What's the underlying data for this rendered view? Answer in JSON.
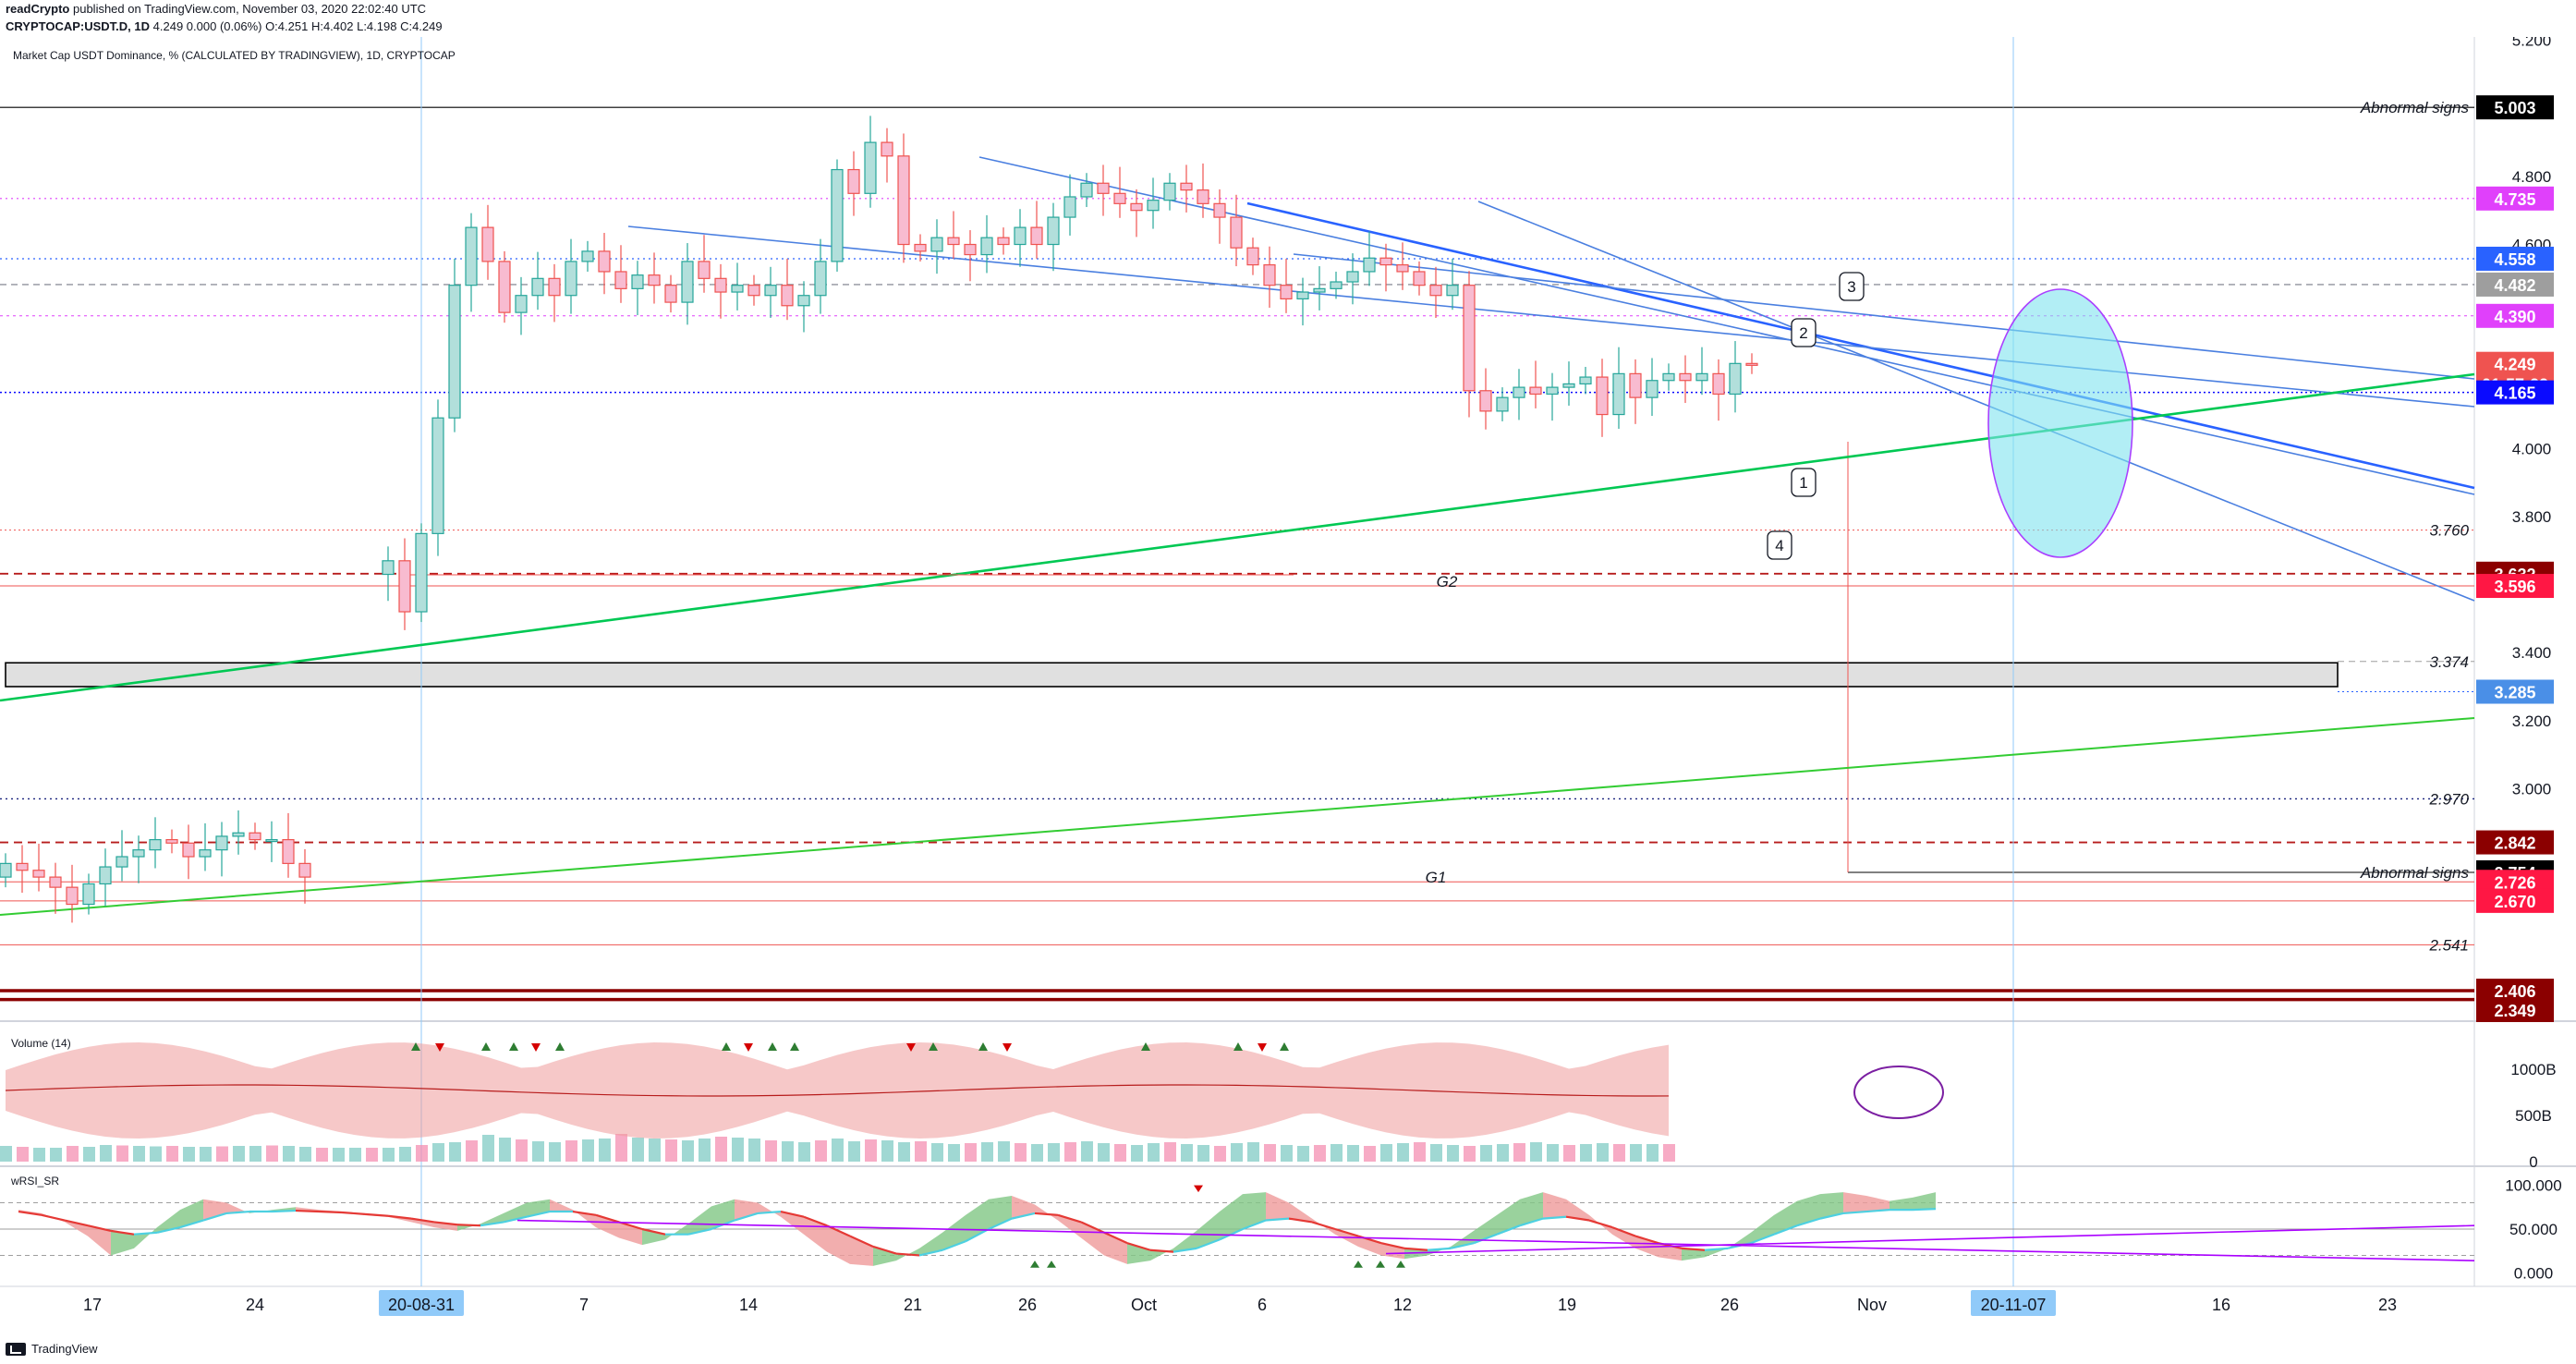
{
  "header": {
    "author": "readCrypto",
    "published": "published on TradingView.com, November 03, 2020 22:02:40 UTC",
    "symbol": "CRYPTOCAP:USDT.D, 1D",
    "ohlc": "4.249 0.000 (0.06%) O:4.251 H:4.402 L:4.198 C:4.249"
  },
  "legend": {
    "title": "Market Cap USDT Dominance, % (CALCULATED BY TRADINGVIEW), 1D, CRYPTOCAP"
  },
  "footer": {
    "brand": "TradingView"
  },
  "colors": {
    "up": "#26a69a",
    "down": "#ef5350",
    "trend_blue": "#2962ff",
    "support_green": "#00c853",
    "magenta": "#e040fb",
    "darkred": "#8b0000"
  },
  "chart_data": [
    {
      "type": "candlestick",
      "title": "Market Cap USDT Dominance, % (CALCULATED BY TRADINGVIEW), 1D, CRYPTOCAP",
      "x_ticks": [
        "17",
        "24",
        "20-08-31",
        "7",
        "14",
        "21",
        "26",
        "Oct",
        "6",
        "12",
        "19",
        "26",
        "Nov",
        "20-11-07",
        "16",
        "23"
      ],
      "y_ticks": [
        "5.200",
        "4.800",
        "4.600",
        "4.000",
        "3.800",
        "3.400",
        "3.200",
        "3.000"
      ],
      "ylim": [
        2.33,
        5.21
      ],
      "closes": [
        2.78,
        2.76,
        2.74,
        2.71,
        2.66,
        2.72,
        2.77,
        2.8,
        2.82,
        2.85,
        2.84,
        2.8,
        2.82,
        2.86,
        2.87,
        2.85,
        2.85,
        2.78,
        2.74,
        null,
        null,
        null,
        null,
        3.67,
        3.52,
        3.75,
        4.09,
        4.48,
        4.65,
        4.55,
        4.4,
        4.45,
        4.5,
        4.45,
        4.55,
        4.58,
        4.52,
        4.47,
        4.51,
        4.48,
        4.43,
        4.55,
        4.5,
        4.46,
        4.48,
        4.45,
        4.48,
        4.42,
        4.45,
        4.55,
        4.82,
        4.75,
        4.9,
        4.86,
        4.6,
        4.58,
        4.62,
        4.6,
        4.57,
        4.62,
        4.6,
        4.65,
        4.6,
        4.68,
        4.74,
        4.78,
        4.75,
        4.72,
        4.7,
        4.73,
        4.78,
        4.76,
        4.72,
        4.68,
        4.59,
        4.54,
        4.48,
        4.44,
        4.46,
        4.47,
        4.49,
        4.52,
        4.56,
        4.54,
        4.52,
        4.48,
        4.45,
        4.48,
        4.17,
        4.11,
        4.15,
        4.18,
        4.16,
        4.18,
        4.19,
        4.21,
        4.1,
        4.22,
        4.15,
        4.2,
        4.22,
        4.2,
        4.22,
        4.16,
        4.25,
        4.249
      ],
      "annotations": {
        "price_labels": [
          {
            "value": 5.003,
            "text": "5.003",
            "bg": "#000000"
          },
          {
            "value": 4.735,
            "text": "4.735",
            "bg": "#e040fb"
          },
          {
            "value": 4.558,
            "text": "4.558",
            "bg": "#2962ff"
          },
          {
            "value": 4.482,
            "text": "4.482",
            "bg": "#9e9e9e"
          },
          {
            "value": 4.39,
            "text": "4.390",
            "bg": "#e040fb"
          },
          {
            "value": 4.249,
            "text": "4.249",
            "bg": "#ef5350"
          },
          {
            "value": 4.19,
            "text": "01:57:22",
            "bg": "#ef5350"
          },
          {
            "value": 4.165,
            "text": "4.165",
            "bg": "#0a0aff"
          },
          {
            "value": 3.632,
            "text": "3.632",
            "bg": "#8b0000"
          },
          {
            "value": 3.596,
            "text": "3.596",
            "bg": "#ff1744"
          },
          {
            "value": 3.285,
            "text": "3.285",
            "bg": "#4a8fe7"
          },
          {
            "value": 2.842,
            "text": "2.842",
            "bg": "#8b0000"
          },
          {
            "value": 2.754,
            "text": "2.754",
            "bg": "#000000"
          },
          {
            "value": 2.726,
            "text": "2.726",
            "bg": "#ff1744"
          },
          {
            "value": 2.67,
            "text": "2.670",
            "bg": "#ff1744"
          },
          {
            "value": 2.406,
            "text": "2.406",
            "bg": "#8b0000"
          },
          {
            "value": 2.349,
            "text": "2.349",
            "bg": "#8b0000"
          }
        ],
        "italic_labels": [
          {
            "value": 5.003,
            "text": "Abnormal signs"
          },
          {
            "value": 3.76,
            "text": "3.760"
          },
          {
            "value": 3.374,
            "text": "3.374"
          },
          {
            "value": 2.97,
            "text": "2.970"
          },
          {
            "value": 2.754,
            "text": "Abnormal signs"
          },
          {
            "value": 2.541,
            "text": "2.541"
          }
        ],
        "zone_labels": [
          {
            "value": 3.61,
            "text": "G2"
          },
          {
            "value": 2.74,
            "text": "G1"
          }
        ],
        "callouts": [
          "1",
          "2",
          "3",
          "4"
        ]
      }
    },
    {
      "type": "bar",
      "title": "Volume (14)",
      "y_ticks": [
        "1000B",
        "500B",
        "0"
      ],
      "ylim": [
        0,
        1300
      ],
      "values": [
        170,
        160,
        150,
        150,
        170,
        160,
        180,
        175,
        170,
        165,
        170,
        160,
        160,
        165,
        170,
        170,
        175,
        170,
        160,
        150,
        150,
        150,
        150,
        150,
        160,
        180,
        200,
        210,
        230,
        290,
        260,
        240,
        220,
        210,
        230,
        240,
        250,
        300,
        260,
        250,
        240,
        230,
        250,
        270,
        260,
        250,
        230,
        220,
        210,
        230,
        250,
        220,
        240,
        230,
        210,
        220,
        200,
        190,
        200,
        210,
        220,
        200,
        190,
        200,
        210,
        220,
        200,
        190,
        180,
        200,
        210,
        190,
        180,
        170,
        200,
        210,
        190,
        180,
        170,
        180,
        190,
        180,
        170,
        190,
        200,
        210,
        190,
        180,
        170,
        180,
        190,
        200,
        210,
        190,
        180,
        190,
        200,
        190,
        190,
        190,
        190
      ]
    },
    {
      "type": "line",
      "title": "wRSI_SR",
      "y_ticks": [
        "100.000",
        "50.000",
        "0.000"
      ],
      "ylim": [
        -8,
        108
      ],
      "series": [
        {
          "values": [
            72,
            68,
            58,
            42,
            20,
            28,
            52,
            72,
            84,
            80,
            68,
            72,
            75,
            72,
            70,
            66,
            64,
            58,
            52,
            48,
            56,
            68,
            80,
            84,
            72,
            52,
            40,
            32,
            38,
            56,
            76,
            84,
            80,
            64,
            44,
            24,
            10,
            8,
            14,
            28,
            46,
            66,
            84,
            88,
            78,
            60,
            40,
            20,
            10,
            14,
            28,
            48,
            70,
            90,
            92,
            80,
            62,
            44,
            30,
            20,
            16,
            20,
            30,
            48,
            66,
            84,
            92,
            84,
            66,
            44,
            28,
            18,
            14,
            18,
            28,
            46,
            66,
            82,
            90,
            92,
            88,
            82,
            86,
            92
          ]
        },
        {
          "values": [
            70,
            66,
            60,
            54,
            48,
            44,
            46,
            52,
            60,
            68,
            70,
            70,
            71,
            70,
            69,
            67,
            65,
            62,
            58,
            55,
            54,
            58,
            64,
            70,
            70,
            66,
            58,
            50,
            44,
            44,
            50,
            60,
            68,
            70,
            64,
            54,
            42,
            30,
            22,
            20,
            26,
            36,
            50,
            62,
            68,
            66,
            58,
            46,
            34,
            26,
            24,
            28,
            38,
            50,
            60,
            62,
            58,
            50,
            42,
            34,
            28,
            26,
            28,
            34,
            44,
            54,
            62,
            64,
            60,
            52,
            42,
            34,
            28,
            26,
            28,
            34,
            44,
            54,
            62,
            68,
            70,
            72,
            72,
            73
          ]
        }
      ]
    }
  ]
}
